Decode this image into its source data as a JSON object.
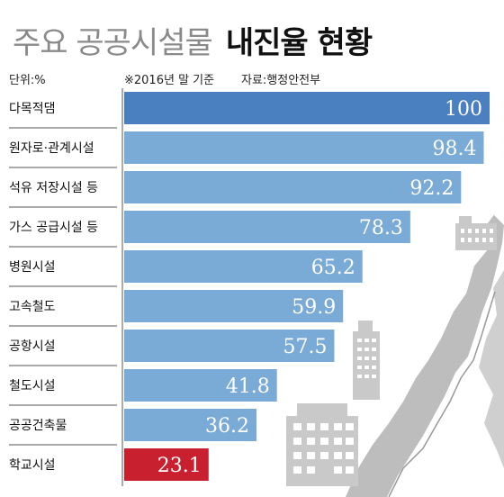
{
  "title": {
    "light": "주요 공공시설물",
    "bold": "내진율 현황"
  },
  "meta": {
    "unit": "단위:%",
    "base": "※2016년 말 기준",
    "source": "자료:행정안전부"
  },
  "colors": {
    "bar": "#7aaad6",
    "bar_top": "#4a7fc0",
    "bar_highlight": "#c8202e",
    "divider": "#555555",
    "illustration": "#c9c9c9"
  },
  "chart_data": {
    "type": "bar",
    "orientation": "horizontal",
    "categories": [
      "다목적댐",
      "원자로·관계시설",
      "석유 저장시설 등",
      "가스 공급시설 등",
      "병원시설",
      "고속철도",
      "공항시설",
      "철도시설",
      "공공건축물",
      "학교시설"
    ],
    "values": [
      100,
      98.4,
      92.2,
      78.3,
      65.2,
      59.9,
      57.5,
      41.8,
      36.2,
      23.1
    ],
    "value_labels": [
      "100",
      "98.4",
      "92.2",
      "78.3",
      "65.2",
      "59.9",
      "57.5",
      "41.8",
      "36.2",
      "23.1"
    ],
    "xlim": [
      0,
      100
    ],
    "highlight_category": "학교시설",
    "grid": false,
    "legend": "none"
  }
}
